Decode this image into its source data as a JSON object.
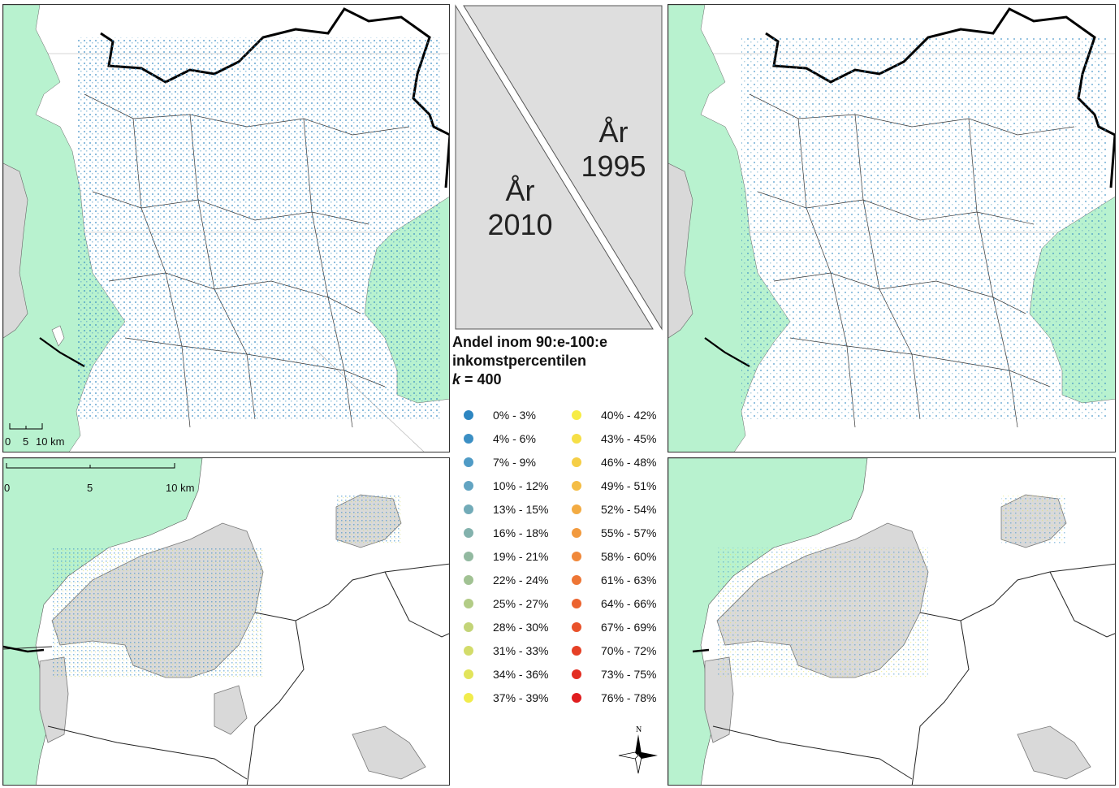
{
  "panels": {
    "year_2010": "År\n2010",
    "year_1995": "År\n1995"
  },
  "legend": {
    "title_line1": "Andel inom 90:e-100:e",
    "title_line2": "inkomstpercentilen",
    "title_k_symbol": "k",
    "title_k_value": " = 400",
    "items": [
      {
        "label": "0% - 3%",
        "color": "#2e86c1"
      },
      {
        "label": "4% - 6%",
        "color": "#3b8fc4"
      },
      {
        "label": "7% - 9%",
        "color": "#4f9bc6"
      },
      {
        "label": "10% - 12%",
        "color": "#62a4c2"
      },
      {
        "label": "13% - 15%",
        "color": "#72abb8"
      },
      {
        "label": "16% - 18%",
        "color": "#83b2ad"
      },
      {
        "label": "19% - 21%",
        "color": "#92b9a0"
      },
      {
        "label": "22% - 24%",
        "color": "#a1c293"
      },
      {
        "label": "25% - 27%",
        "color": "#b2cc86"
      },
      {
        "label": "28% - 30%",
        "color": "#c3d478"
      },
      {
        "label": "31% - 33%",
        "color": "#d3dc6a"
      },
      {
        "label": "34% - 36%",
        "color": "#e2e45b"
      },
      {
        "label": "37% - 39%",
        "color": "#f1ec4c"
      },
      {
        "label": "40% - 42%",
        "color": "#f7ec45"
      },
      {
        "label": "43% - 45%",
        "color": "#f6df46"
      },
      {
        "label": "46% - 48%",
        "color": "#f5ce46"
      },
      {
        "label": "49% - 51%",
        "color": "#f4bd45"
      },
      {
        "label": "52% - 54%",
        "color": "#f3ab42"
      },
      {
        "label": "55% - 57%",
        "color": "#f29a3e"
      },
      {
        "label": "58% - 60%",
        "color": "#f0883a"
      },
      {
        "label": "61% - 63%",
        "color": "#ee7635"
      },
      {
        "label": "64% - 66%",
        "color": "#ec6430"
      },
      {
        "label": "67% - 69%",
        "color": "#e9522b"
      },
      {
        "label": "70% - 72%",
        "color": "#e64026"
      },
      {
        "label": "73% - 75%",
        "color": "#e32e22"
      },
      {
        "label": "76% - 78%",
        "color": "#e01d1f"
      }
    ]
  },
  "scalebar_overview": {
    "labels": [
      "0",
      "5",
      "10 km"
    ]
  },
  "scalebar_detail": {
    "labels": [
      "0",
      "5",
      "10 km"
    ]
  },
  "north_arrow": {
    "label": "N"
  },
  "colors": {
    "sea": "#b8f2cf",
    "urban": "#d9d9d9",
    "border": "#000000"
  }
}
